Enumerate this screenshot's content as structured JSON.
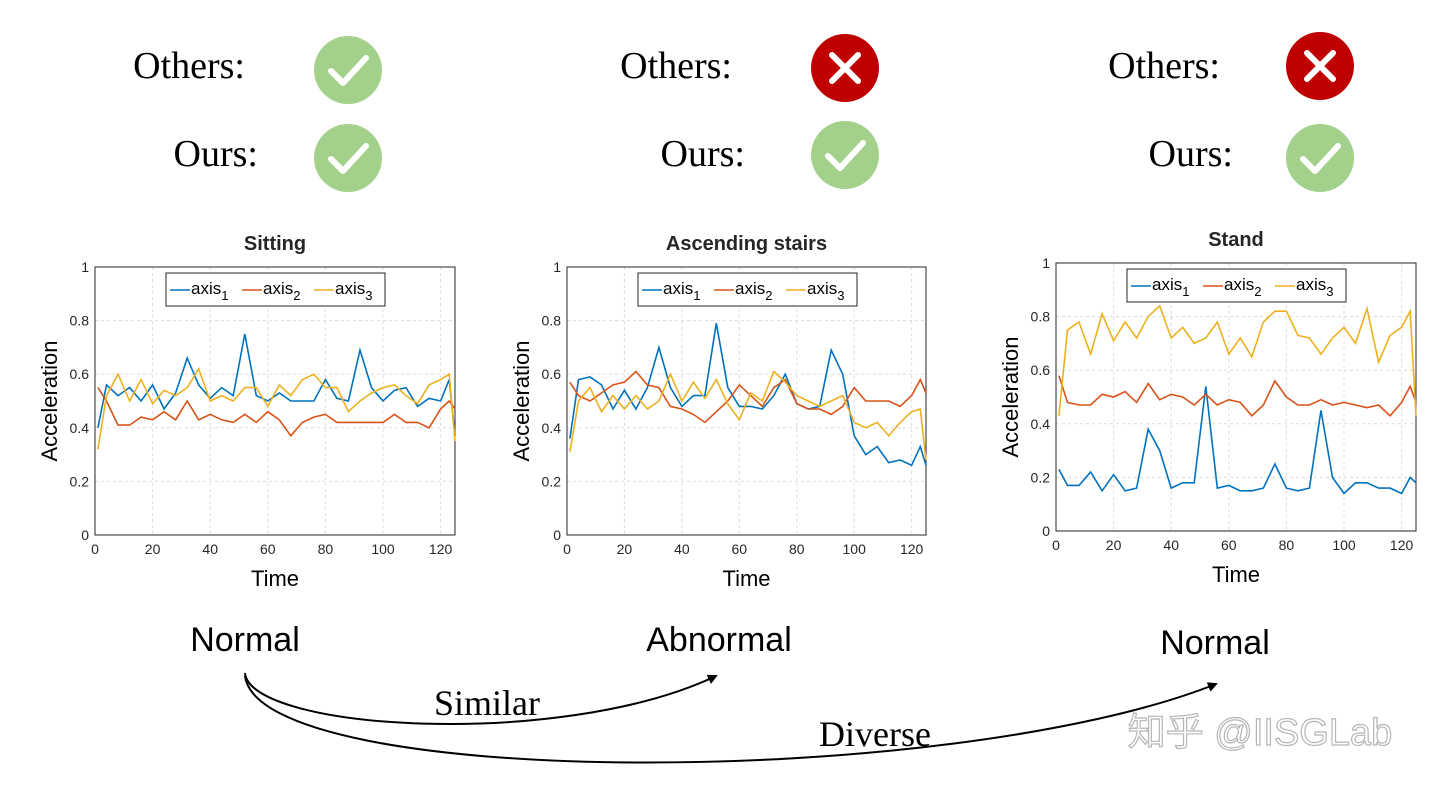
{
  "header": {
    "columns": [
      {
        "others_label": "Others:",
        "others_status": "check",
        "ours_label": "Ours:",
        "ours_status": "check"
      },
      {
        "others_label": "Others:",
        "others_status": "cross",
        "ours_label": "Ours:",
        "ours_status": "check"
      },
      {
        "others_label": "Others:",
        "others_status": "cross",
        "ours_label": "Ours:",
        "ours_status": "check"
      }
    ],
    "colors": {
      "check": "#a3d18b",
      "cross": "#c00000"
    }
  },
  "bottom": {
    "labels": [
      "Normal",
      "Abnormal",
      "Normal"
    ],
    "arrow_similar": "Similar",
    "arrow_diverse": "Diverse",
    "watermark": "知乎 @IISGLab"
  },
  "series_colors": {
    "axis1": "#0072bd",
    "axis2": "#d95319",
    "axis3": "#edb120"
  },
  "chart_data": [
    {
      "type": "line",
      "title": "Sitting",
      "xlabel": "Time",
      "ylabel": "Acceleration",
      "xlim": [
        0,
        125
      ],
      "ylim": [
        0,
        1
      ],
      "xticks": [
        "0",
        "20",
        "40",
        "60",
        "80",
        "100",
        "120"
      ],
      "yticks": [
        "0",
        "0.2",
        "0.4",
        "0.6",
        "0.8",
        "1"
      ],
      "grid": true,
      "legend_placement": "top-center",
      "x": [
        1,
        4,
        8,
        12,
        16,
        20,
        24,
        28,
        32,
        36,
        40,
        44,
        48,
        52,
        56,
        60,
        64,
        68,
        72,
        76,
        80,
        84,
        88,
        92,
        96,
        100,
        104,
        108,
        112,
        116,
        120,
        123,
        125
      ],
      "series": [
        {
          "name": "axis",
          "sub": "1",
          "values": [
            0.4,
            0.56,
            0.52,
            0.55,
            0.5,
            0.56,
            0.47,
            0.53,
            0.66,
            0.56,
            0.51,
            0.55,
            0.52,
            0.75,
            0.52,
            0.5,
            0.53,
            0.5,
            0.5,
            0.5,
            0.58,
            0.51,
            0.5,
            0.69,
            0.55,
            0.5,
            0.54,
            0.55,
            0.48,
            0.51,
            0.5,
            0.58,
            0.37
          ]
        },
        {
          "name": "axis",
          "sub": "2",
          "values": [
            0.55,
            0.5,
            0.41,
            0.41,
            0.44,
            0.43,
            0.46,
            0.43,
            0.5,
            0.43,
            0.45,
            0.43,
            0.42,
            0.45,
            0.42,
            0.46,
            0.43,
            0.37,
            0.42,
            0.44,
            0.45,
            0.42,
            0.42,
            0.42,
            0.42,
            0.42,
            0.45,
            0.42,
            0.42,
            0.4,
            0.47,
            0.5,
            0.47
          ]
        },
        {
          "name": "axis",
          "sub": "3",
          "values": [
            0.32,
            0.52,
            0.6,
            0.5,
            0.58,
            0.49,
            0.54,
            0.52,
            0.55,
            0.62,
            0.5,
            0.52,
            0.5,
            0.55,
            0.55,
            0.48,
            0.56,
            0.52,
            0.58,
            0.6,
            0.55,
            0.55,
            0.46,
            0.5,
            0.53,
            0.55,
            0.56,
            0.52,
            0.49,
            0.56,
            0.58,
            0.6,
            0.35
          ]
        }
      ]
    },
    {
      "type": "line",
      "title": "Ascending stairs",
      "xlabel": "Time",
      "ylabel": "Acceleration",
      "xlim": [
        0,
        125
      ],
      "ylim": [
        0,
        1
      ],
      "xticks": [
        "0",
        "20",
        "40",
        "60",
        "80",
        "100",
        "120"
      ],
      "yticks": [
        "0",
        "0.2",
        "0.4",
        "0.6",
        "0.8",
        "1"
      ],
      "grid": true,
      "legend_placement": "top-center",
      "x": [
        1,
        4,
        8,
        12,
        16,
        20,
        24,
        28,
        32,
        36,
        40,
        44,
        48,
        52,
        56,
        60,
        64,
        68,
        72,
        76,
        80,
        84,
        88,
        92,
        96,
        100,
        104,
        108,
        112,
        116,
        120,
        123,
        125
      ],
      "series": [
        {
          "name": "axis",
          "sub": "1",
          "values": [
            0.36,
            0.58,
            0.59,
            0.56,
            0.47,
            0.54,
            0.47,
            0.55,
            0.7,
            0.55,
            0.48,
            0.52,
            0.52,
            0.79,
            0.55,
            0.48,
            0.48,
            0.47,
            0.52,
            0.6,
            0.49,
            0.47,
            0.48,
            0.69,
            0.6,
            0.37,
            0.3,
            0.33,
            0.27,
            0.28,
            0.26,
            0.33,
            0.26
          ]
        },
        {
          "name": "axis",
          "sub": "2",
          "values": [
            0.57,
            0.52,
            0.5,
            0.53,
            0.56,
            0.57,
            0.61,
            0.56,
            0.55,
            0.48,
            0.47,
            0.45,
            0.42,
            0.46,
            0.5,
            0.56,
            0.52,
            0.48,
            0.55,
            0.58,
            0.49,
            0.47,
            0.47,
            0.45,
            0.48,
            0.55,
            0.5,
            0.5,
            0.5,
            0.48,
            0.52,
            0.58,
            0.53
          ]
        },
        {
          "name": "axis",
          "sub": "3",
          "values": [
            0.31,
            0.5,
            0.55,
            0.46,
            0.52,
            0.47,
            0.52,
            0.47,
            0.5,
            0.6,
            0.5,
            0.57,
            0.51,
            0.58,
            0.49,
            0.43,
            0.53,
            0.5,
            0.61,
            0.57,
            0.52,
            0.5,
            0.48,
            0.5,
            0.52,
            0.42,
            0.4,
            0.42,
            0.37,
            0.42,
            0.46,
            0.47,
            0.28
          ]
        }
      ]
    },
    {
      "type": "line",
      "title": "Stand",
      "xlabel": "Time",
      "ylabel": "Acceleration",
      "xlim": [
        0,
        125
      ],
      "ylim": [
        0,
        1
      ],
      "xticks": [
        "0",
        "20",
        "40",
        "60",
        "80",
        "100",
        "120"
      ],
      "yticks": [
        "0",
        "0.2",
        "0.4",
        "0.6",
        "0.8",
        "1"
      ],
      "grid": true,
      "legend_placement": "top-center",
      "x": [
        1,
        4,
        8,
        12,
        16,
        20,
        24,
        28,
        32,
        36,
        40,
        44,
        48,
        52,
        56,
        60,
        64,
        68,
        72,
        76,
        80,
        84,
        88,
        92,
        96,
        100,
        104,
        108,
        112,
        116,
        120,
        123,
        125
      ],
      "series": [
        {
          "name": "axis",
          "sub": "1",
          "values": [
            0.23,
            0.17,
            0.17,
            0.22,
            0.15,
            0.21,
            0.15,
            0.16,
            0.38,
            0.3,
            0.16,
            0.18,
            0.18,
            0.54,
            0.16,
            0.17,
            0.15,
            0.15,
            0.16,
            0.25,
            0.16,
            0.15,
            0.16,
            0.45,
            0.2,
            0.14,
            0.18,
            0.18,
            0.16,
            0.16,
            0.14,
            0.2,
            0.18
          ]
        },
        {
          "name": "axis",
          "sub": "2",
          "values": [
            0.58,
            0.48,
            0.47,
            0.47,
            0.51,
            0.5,
            0.52,
            0.48,
            0.55,
            0.49,
            0.51,
            0.5,
            0.47,
            0.51,
            0.47,
            0.49,
            0.48,
            0.43,
            0.47,
            0.56,
            0.5,
            0.47,
            0.47,
            0.49,
            0.47,
            0.48,
            0.47,
            0.46,
            0.47,
            0.43,
            0.48,
            0.54,
            0.48
          ]
        },
        {
          "name": "axis",
          "sub": "3",
          "values": [
            0.43,
            0.75,
            0.78,
            0.66,
            0.81,
            0.71,
            0.78,
            0.72,
            0.8,
            0.84,
            0.72,
            0.76,
            0.7,
            0.72,
            0.78,
            0.66,
            0.72,
            0.65,
            0.78,
            0.82,
            0.82,
            0.73,
            0.72,
            0.66,
            0.72,
            0.76,
            0.7,
            0.83,
            0.63,
            0.73,
            0.76,
            0.82,
            0.43
          ]
        }
      ]
    }
  ]
}
